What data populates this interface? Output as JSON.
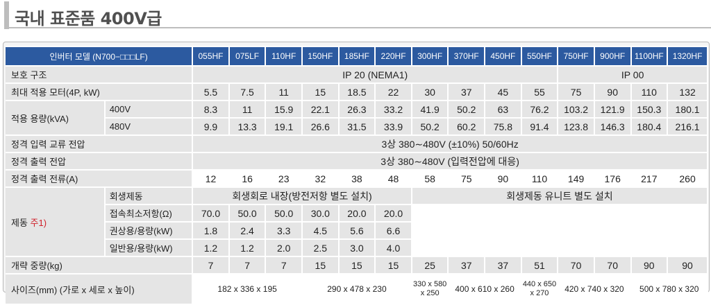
{
  "title": "국내 표준품 400V급",
  "header": {
    "label": "인버터 모델 (N700−□□□LF)",
    "models": [
      "055HF",
      "075LF",
      "110HF",
      "150HF",
      "185HF",
      "220HF",
      "300HF",
      "370HF",
      "450HF",
      "550HF",
      "750HF",
      "900HF",
      "1100HF",
      "1320HF"
    ]
  },
  "protection": {
    "label": "보호 구조",
    "group1": "IP 20 (NEMA1)",
    "group2": "IP 00"
  },
  "motor": {
    "label": "최대 적용 모터(4P, kW)",
    "values": [
      "5.5",
      "7.5",
      "11",
      "15",
      "18.5",
      "22",
      "30",
      "37",
      "45",
      "55",
      "75",
      "90",
      "110",
      "132"
    ]
  },
  "capacity": {
    "label": "적용 용량(kVA)",
    "rows": [
      {
        "voltage": "400V",
        "values": [
          "8.3",
          "11",
          "15.9",
          "22.1",
          "26.3",
          "33.2",
          "41.9",
          "50.2",
          "63",
          "76.2",
          "103.2",
          "121.9",
          "150.3",
          "180.1"
        ]
      },
      {
        "voltage": "480V",
        "values": [
          "9.9",
          "13.3",
          "19.1",
          "26.6",
          "31.5",
          "33.9",
          "50.2",
          "60.2",
          "75.8",
          "91.4",
          "123.8",
          "146.3",
          "180.4",
          "216.1"
        ]
      }
    ]
  },
  "input_voltage": {
    "label": "정격 입력 교류 전압",
    "value": "3상 380∼480V (±10%) 50/60Hz"
  },
  "output_voltage": {
    "label": "정격 출력 전압",
    "value": "3상 380∼480V (입력전압에 대응)"
  },
  "output_current": {
    "label": "정격 출력 전류(A)",
    "values": [
      "12",
      "16",
      "23",
      "32",
      "38",
      "48",
      "58",
      "75",
      "90",
      "110",
      "149",
      "176",
      "217",
      "260"
    ]
  },
  "braking": {
    "label": "제동 ",
    "note": "주1)",
    "regen_label": "회생제동",
    "regen_group1": "회생회로 내장(방전저항 별도 설치)",
    "regen_group2": "회생제동 유니트 별도 설치",
    "rows": [
      {
        "label": "접속최소저항(Ω)",
        "values": [
          "70.0",
          "50.0",
          "50.0",
          "30.0",
          "20.0",
          "20.0"
        ]
      },
      {
        "label": "권상용/용량(kW)",
        "values": [
          "1.8",
          "2.4",
          "3.3",
          "4.5",
          "5.6",
          "6.6"
        ]
      },
      {
        "label": "일반용/용량(kW)",
        "values": [
          "1.2",
          "1.2",
          "2.0",
          "2.5",
          "3.0",
          "4.0"
        ]
      }
    ]
  },
  "weight": {
    "label": "개략 중량(kg)",
    "values": [
      "7",
      "7",
      "7",
      "15",
      "15",
      "15",
      "25",
      "37",
      "37",
      "51",
      "70",
      "70",
      "90",
      "90"
    ]
  },
  "size": {
    "label": "사이즈(mm) (가로 x 세로 x 높이)",
    "groups": [
      "182 x 336 x 195",
      "290 x 478 x 230",
      "330 x 580\nx 250",
      "400 x 610 x 260",
      "440 x 650\nx 270",
      "420 x 740 x 320",
      "500 x 780 x 320"
    ]
  }
}
